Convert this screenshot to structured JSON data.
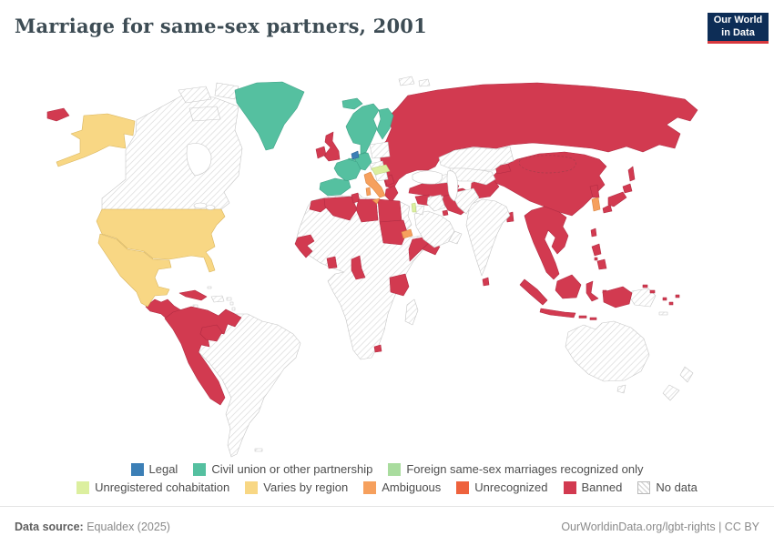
{
  "header": {
    "title": "Marriage for same-sex partners, 2001",
    "logo": {
      "line1": "Our World",
      "line2": "in Data",
      "bg_color": "#0d2d56",
      "accent_color": "#d7383e"
    }
  },
  "legend": {
    "rows": [
      [
        {
          "key": "legal",
          "label": "Legal",
          "color": "#3c7fb6"
        },
        {
          "key": "civil_union",
          "label": "Civil union or other partnership",
          "color": "#55c0a0"
        },
        {
          "key": "foreign_recognized",
          "label": "Foreign same-sex marriages recognized only",
          "color": "#a9dc9e"
        }
      ],
      [
        {
          "key": "unregistered_cohabitation",
          "label": "Unregistered cohabitation",
          "color": "#dcef9f"
        },
        {
          "key": "varies_by_region",
          "label": "Varies by region",
          "color": "#f8d784"
        },
        {
          "key": "ambiguous",
          "label": "Ambiguous",
          "color": "#f6a05d"
        },
        {
          "key": "unrecognized",
          "label": "Unrecognized",
          "color": "#ee623d"
        },
        {
          "key": "banned",
          "label": "Banned",
          "color": "#d23a50"
        },
        {
          "key": "no_data",
          "label": "No data",
          "color": null
        }
      ]
    ]
  },
  "map": {
    "hatch_color": "#dadada",
    "water_color": "#ffffff",
    "status_colors": {
      "legal": "#3c7fb6",
      "civil_union": "#55c0a0",
      "foreign_recognized": "#a9dc9e",
      "unregistered_cohabitation": "#dcef9f",
      "varies_by_region": "#f8d784",
      "ambiguous": "#f6a05d",
      "unrecognized": "#ee623d",
      "banned": "#d23a50"
    },
    "status_strokes": {
      "legal": "#2d6394",
      "civil_union": "#3fa287",
      "foreign_recognized": "#8cc284",
      "unregistered_cohabitation": "#bdd37f",
      "varies_by_region": "#d9b55e",
      "ambiguous": "#d8833f",
      "unrecognized": "#c94c2c",
      "banned": "#b22c43",
      "no_data": "#c6c6c6"
    }
  },
  "footer": {
    "source_label": "Data source:",
    "source_value": " Equaldex (2025)",
    "right_text": "OurWorldinData.org/lgbt-rights | CC BY"
  },
  "chart_data": {
    "type": "heatmap",
    "subtype": "world-choropleth",
    "title": "Marriage for same-sex partners, 2001",
    "year": 2001,
    "source": "Equaldex (2025)",
    "legend_categories": [
      "Legal",
      "Civil union or other partnership",
      "Foreign same-sex marriages recognized only",
      "Unregistered cohabitation",
      "Varies by region",
      "Ambiguous",
      "Unrecognized",
      "Banned",
      "No data"
    ],
    "countries_by_status": {
      "legal": [
        "Netherlands"
      ],
      "civil_union": [
        "Greenland",
        "Iceland",
        "Norway",
        "Sweden",
        "Finland",
        "Denmark",
        "France",
        "Germany",
        "Belgium",
        "Spain",
        "Portugal"
      ],
      "foreign_recognized": [],
      "unregistered_cohabitation": [
        "Hungary",
        "Slovenia",
        "Israel"
      ],
      "varies_by_region": [
        "United States",
        "Mexico"
      ],
      "ambiguous": [
        "Italy",
        "South Korea",
        "Eritrea"
      ],
      "unrecognized": [],
      "banned": [
        "Russia",
        "United Kingdom",
        "Ireland",
        "Ukraine",
        "Belarus",
        "Romania",
        "Bulgaria",
        "Serbia",
        "Greece",
        "Turkey",
        "Syria",
        "Iran",
        "Afghanistan",
        "Egypt",
        "Morocco",
        "Algeria",
        "Tunisia",
        "Libya",
        "Sudan",
        "Somalia",
        "Yemen",
        "Kuwait",
        "Senegal",
        "Guinea",
        "Sierra Leone",
        "Ghana",
        "Cameroon",
        "Tanzania",
        "Lesotho",
        "China",
        "Mongolia",
        "Japan",
        "North Korea",
        "Kyrgyzstan",
        "Tajikistan",
        "Sri Lanka",
        "Bangladesh",
        "Myanmar",
        "Thailand",
        "Laos",
        "Vietnam",
        "Cambodia",
        "Malaysia",
        "Indonesia",
        "Philippines",
        "Taiwan",
        "Fiji",
        "Vanuatu",
        "Solomon Islands",
        "Cuba",
        "Guatemala",
        "Honduras",
        "Nicaragua",
        "Costa Rica",
        "Panama",
        "Colombia",
        "Venezuela",
        "Ecuador",
        "Peru",
        "Paraguay"
      ],
      "no_data": [
        "Canada",
        "Brazil",
        "Argentina",
        "Chile",
        "Bolivia",
        "Guyana",
        "Suriname",
        "Australia",
        "New Zealand",
        "India",
        "Pakistan",
        "Kazakhstan",
        "Turkmenistan",
        "Uzbekistan",
        "Saudi Arabia",
        "Oman",
        "Jordan",
        "Iraq",
        "Ethiopia",
        "Kenya",
        "Nigeria",
        "Mali",
        "Niger",
        "Chad",
        "Mauritania",
        "DR Congo",
        "Angola",
        "Zambia",
        "Zimbabwe",
        "Botswana",
        "Namibia",
        "South Africa",
        "Madagascar",
        "Poland",
        "Austria",
        "Czechia",
        "Croatia",
        "Bosnia and Herzegovina",
        "Papua New Guinea",
        "Haiti",
        "Dominican Republic"
      ]
    }
  }
}
